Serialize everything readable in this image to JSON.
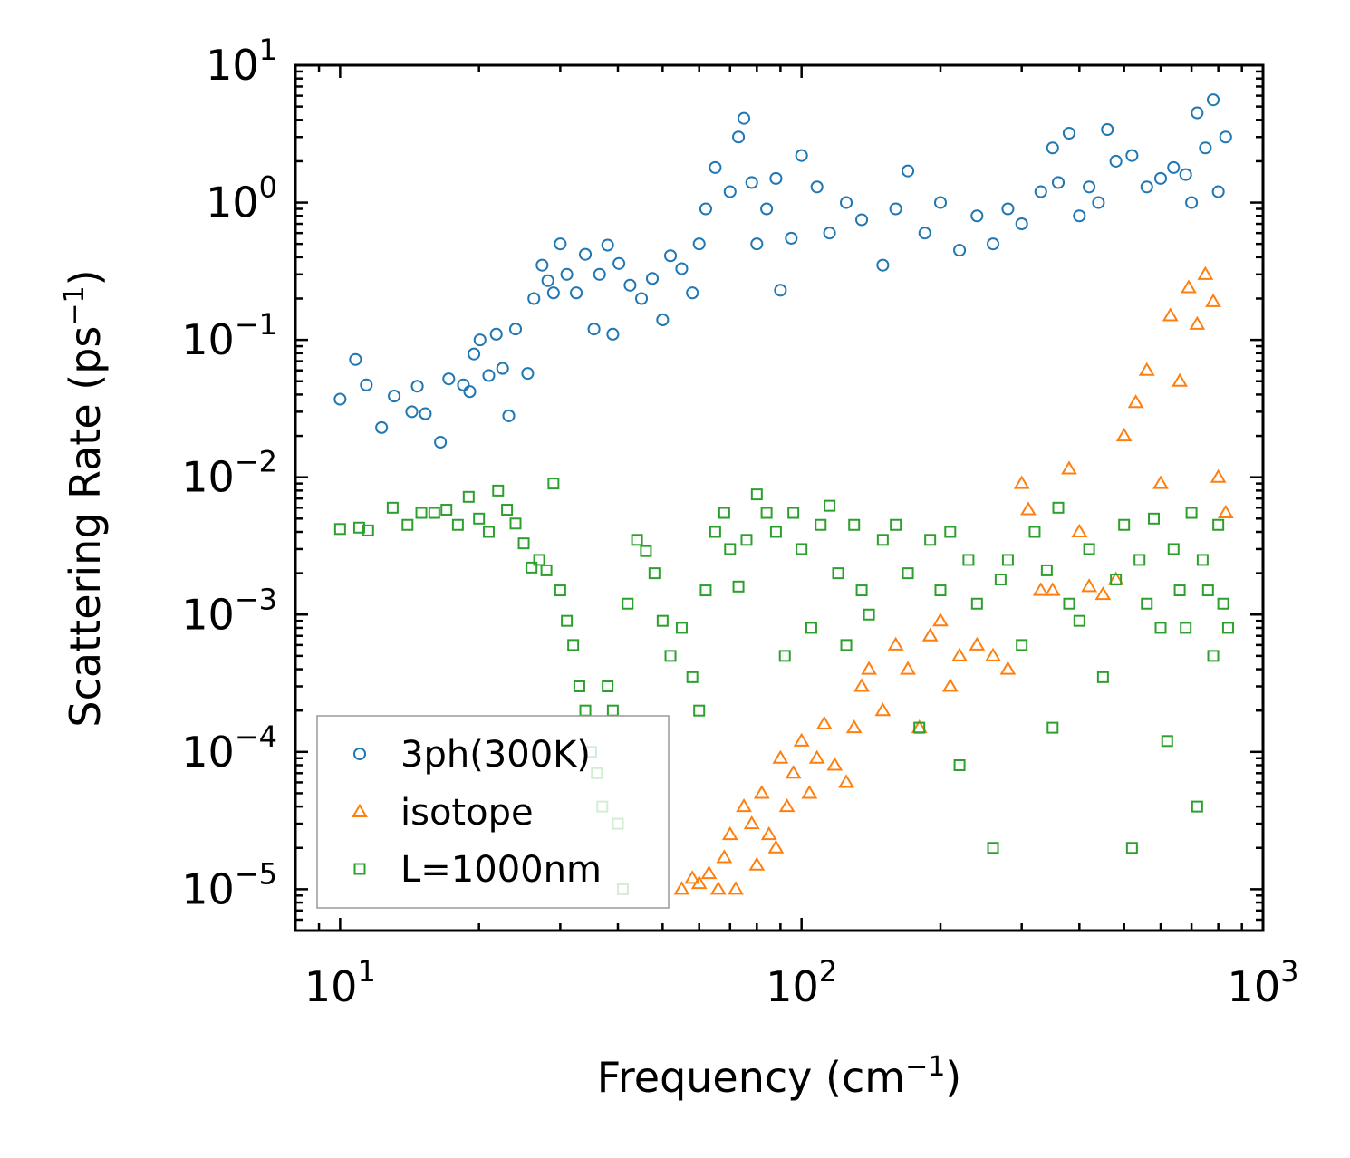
{
  "chart_data": {
    "type": "scatter",
    "title": "",
    "xlabel": "Frequency (cm",
    "xlabel_sup": "−1",
    "xlabel_close": ")",
    "ylabel": "Scattering Rate (ps",
    "ylabel_sup": "−1",
    "ylabel_close": ")",
    "xscale": "log",
    "yscale": "log",
    "xlim": [
      8,
      1000
    ],
    "ylim": [
      5e-06,
      10
    ],
    "xticks": [
      {
        "value": 10,
        "base": "10",
        "exp": "1"
      },
      {
        "value": 100,
        "base": "10",
        "exp": "2"
      },
      {
        "value": 1000,
        "base": "10",
        "exp": "3"
      }
    ],
    "yticks": [
      {
        "value": 10,
        "base": "10",
        "exp": "1"
      },
      {
        "value": 1,
        "base": "10",
        "exp": "0"
      },
      {
        "value": 0.1,
        "base": "10",
        "exp": "−1"
      },
      {
        "value": 0.01,
        "base": "10",
        "exp": "−2"
      },
      {
        "value": 0.001,
        "base": "10",
        "exp": "−3"
      },
      {
        "value": 0.0001,
        "base": "10",
        "exp": "−4"
      },
      {
        "value": 1e-05,
        "base": "10",
        "exp": "−5"
      }
    ],
    "legend_position": "lower-left",
    "series": [
      {
        "name": "3ph(300K)",
        "marker": "circle",
        "color": "#1f77b4",
        "points": [
          [
            10,
            0.037
          ],
          [
            10.8,
            0.072
          ],
          [
            11.4,
            0.047
          ],
          [
            12.3,
            0.023
          ],
          [
            13.1,
            0.039
          ],
          [
            14.3,
            0.03
          ],
          [
            14.7,
            0.046
          ],
          [
            15.3,
            0.029
          ],
          [
            16.5,
            0.018
          ],
          [
            17.2,
            0.052
          ],
          [
            18.5,
            0.047
          ],
          [
            19.1,
            0.042
          ],
          [
            19.5,
            0.079
          ],
          [
            20.1,
            0.1
          ],
          [
            21,
            0.055
          ],
          [
            21.8,
            0.11
          ],
          [
            22.5,
            0.062
          ],
          [
            23.2,
            0.028
          ],
          [
            24,
            0.12
          ],
          [
            25.5,
            0.057
          ],
          [
            26.3,
            0.2
          ],
          [
            27.4,
            0.35
          ],
          [
            28.2,
            0.27
          ],
          [
            29,
            0.22
          ],
          [
            30,
            0.5
          ],
          [
            31,
            0.3
          ],
          [
            32.5,
            0.22
          ],
          [
            34,
            0.42
          ],
          [
            35.5,
            0.12
          ],
          [
            36.5,
            0.3
          ],
          [
            38,
            0.49
          ],
          [
            39,
            0.11
          ],
          [
            40.2,
            0.36
          ],
          [
            42.5,
            0.25
          ],
          [
            45,
            0.2
          ],
          [
            47.5,
            0.28
          ],
          [
            50,
            0.14
          ],
          [
            52,
            0.41
          ],
          [
            55,
            0.33
          ],
          [
            58,
            0.22
          ],
          [
            60,
            0.5
          ],
          [
            62,
            0.9
          ],
          [
            65,
            1.8
          ],
          [
            70,
            1.2
          ],
          [
            73,
            3.0
          ],
          [
            75,
            4.1
          ],
          [
            78,
            1.4
          ],
          [
            80,
            0.5
          ],
          [
            84,
            0.9
          ],
          [
            88,
            1.5
          ],
          [
            90,
            0.23
          ],
          [
            95,
            0.55
          ],
          [
            100,
            2.2
          ],
          [
            108,
            1.3
          ],
          [
            115,
            0.6
          ],
          [
            125,
            1.0
          ],
          [
            135,
            0.75
          ],
          [
            150,
            0.35
          ],
          [
            160,
            0.9
          ],
          [
            170,
            1.7
          ],
          [
            185,
            0.6
          ],
          [
            200,
            1.0
          ],
          [
            220,
            0.45
          ],
          [
            240,
            0.8
          ],
          [
            260,
            0.5
          ],
          [
            280,
            0.9
          ],
          [
            300,
            0.7
          ],
          [
            330,
            1.2
          ],
          [
            350,
            2.5
          ],
          [
            360,
            1.4
          ],
          [
            380,
            3.2
          ],
          [
            400,
            0.8
          ],
          [
            420,
            1.3
          ],
          [
            440,
            1.0
          ],
          [
            460,
            3.4
          ],
          [
            480,
            2.0
          ],
          [
            520,
            2.2
          ],
          [
            560,
            1.3
          ],
          [
            600,
            1.5
          ],
          [
            640,
            1.8
          ],
          [
            680,
            1.6
          ],
          [
            700,
            1.0
          ],
          [
            720,
            4.5
          ],
          [
            750,
            2.5
          ],
          [
            780,
            5.6
          ],
          [
            800,
            1.2
          ],
          [
            830,
            3.0
          ]
        ]
      },
      {
        "name": "isotope",
        "marker": "triangle",
        "color": "#ff7f0e",
        "points": [
          [
            55,
            1e-05
          ],
          [
            58,
            1.2e-05
          ],
          [
            60,
            1.1e-05
          ],
          [
            63,
            1.3e-05
          ],
          [
            66,
            1e-05
          ],
          [
            68,
            1.7e-05
          ],
          [
            70,
            2.5e-05
          ],
          [
            72,
            1e-05
          ],
          [
            75,
            4e-05
          ],
          [
            78,
            3e-05
          ],
          [
            80,
            1.5e-05
          ],
          [
            82,
            5e-05
          ],
          [
            85,
            2.5e-05
          ],
          [
            88,
            2e-05
          ],
          [
            90,
            9e-05
          ],
          [
            93,
            4e-05
          ],
          [
            96,
            7e-05
          ],
          [
            100,
            0.00012
          ],
          [
            104,
            5e-05
          ],
          [
            108,
            9e-05
          ],
          [
            112,
            0.00016
          ],
          [
            118,
            8e-05
          ],
          [
            125,
            6e-05
          ],
          [
            130,
            0.00015
          ],
          [
            135,
            0.0003
          ],
          [
            140,
            0.0004
          ],
          [
            150,
            0.0002
          ],
          [
            160,
            0.0006
          ],
          [
            170,
            0.0004
          ],
          [
            180,
            0.00015
          ],
          [
            190,
            0.0007
          ],
          [
            200,
            0.0009
          ],
          [
            210,
            0.0003
          ],
          [
            220,
            0.0005
          ],
          [
            240,
            0.0006
          ],
          [
            260,
            0.0005
          ],
          [
            280,
            0.0004
          ],
          [
            300,
            0.009
          ],
          [
            310,
            0.0058
          ],
          [
            330,
            0.0015
          ],
          [
            350,
            0.0015
          ],
          [
            380,
            0.0115
          ],
          [
            400,
            0.004
          ],
          [
            420,
            0.0016
          ],
          [
            450,
            0.0014
          ],
          [
            480,
            0.0018
          ],
          [
            500,
            0.02
          ],
          [
            530,
            0.035
          ],
          [
            560,
            0.06
          ],
          [
            600,
            0.009
          ],
          [
            630,
            0.15
          ],
          [
            660,
            0.05
          ],
          [
            690,
            0.24
          ],
          [
            720,
            0.13
          ],
          [
            750,
            0.3
          ],
          [
            780,
            0.19
          ],
          [
            800,
            0.01
          ],
          [
            830,
            0.0055
          ]
        ]
      },
      {
        "name": "L=1000nm",
        "marker": "square",
        "color": "#2ca02c",
        "points": [
          [
            10,
            0.0042
          ],
          [
            11,
            0.0043
          ],
          [
            11.5,
            0.0041
          ],
          [
            13,
            0.006
          ],
          [
            14,
            0.0045
          ],
          [
            15,
            0.0055
          ],
          [
            16,
            0.0055
          ],
          [
            17,
            0.0058
          ],
          [
            18,
            0.0045
          ],
          [
            19,
            0.0072
          ],
          [
            20,
            0.005
          ],
          [
            21,
            0.004
          ],
          [
            22,
            0.008
          ],
          [
            23,
            0.0058
          ],
          [
            24,
            0.0046
          ],
          [
            25,
            0.0033
          ],
          [
            26,
            0.0022
          ],
          [
            27,
            0.0025
          ],
          [
            28,
            0.0021
          ],
          [
            29,
            0.009
          ],
          [
            30,
            0.0015
          ],
          [
            31,
            0.0009
          ],
          [
            32,
            0.0006
          ],
          [
            33,
            0.0003
          ],
          [
            34,
            0.0002
          ],
          [
            35,
            0.0001
          ],
          [
            36,
            7e-05
          ],
          [
            37,
            4e-05
          ],
          [
            38,
            0.0003
          ],
          [
            39,
            0.0002
          ],
          [
            40,
            3e-05
          ],
          [
            41,
            1e-05
          ],
          [
            42,
            0.0012
          ],
          [
            44,
            0.0035
          ],
          [
            46,
            0.0029
          ],
          [
            48,
            0.002
          ],
          [
            50,
            0.0009
          ],
          [
            52,
            0.0005
          ],
          [
            55,
            0.0008
          ],
          [
            58,
            0.00035
          ],
          [
            60,
            0.0002
          ],
          [
            62,
            0.0015
          ],
          [
            65,
            0.004
          ],
          [
            68,
            0.0055
          ],
          [
            70,
            0.003
          ],
          [
            73,
            0.0016
          ],
          [
            76,
            0.0035
          ],
          [
            80,
            0.0075
          ],
          [
            84,
            0.0055
          ],
          [
            88,
            0.004
          ],
          [
            92,
            0.0005
          ],
          [
            96,
            0.0055
          ],
          [
            100,
            0.003
          ],
          [
            105,
            0.0008
          ],
          [
            110,
            0.0045
          ],
          [
            115,
            0.0062
          ],
          [
            120,
            0.002
          ],
          [
            125,
            0.0006
          ],
          [
            130,
            0.0045
          ],
          [
            135,
            0.0015
          ],
          [
            140,
            0.001
          ],
          [
            150,
            0.0035
          ],
          [
            160,
            0.0045
          ],
          [
            170,
            0.002
          ],
          [
            180,
            0.00015
          ],
          [
            190,
            0.0035
          ],
          [
            200,
            0.0015
          ],
          [
            210,
            0.004
          ],
          [
            220,
            8e-05
          ],
          [
            230,
            0.0025
          ],
          [
            240,
            0.0012
          ],
          [
            260,
            2e-05
          ],
          [
            270,
            0.0018
          ],
          [
            280,
            0.0025
          ],
          [
            300,
            0.0006
          ],
          [
            320,
            0.004
          ],
          [
            340,
            0.0021
          ],
          [
            350,
            0.00015
          ],
          [
            360,
            0.006
          ],
          [
            380,
            0.0012
          ],
          [
            400,
            0.0009
          ],
          [
            420,
            0.003
          ],
          [
            450,
            0.00035
          ],
          [
            480,
            0.0018
          ],
          [
            500,
            0.0045
          ],
          [
            520,
            2e-05
          ],
          [
            540,
            0.0025
          ],
          [
            560,
            0.0012
          ],
          [
            580,
            0.005
          ],
          [
            600,
            0.0008
          ],
          [
            620,
            0.00012
          ],
          [
            640,
            0.003
          ],
          [
            660,
            0.0015
          ],
          [
            680,
            0.0008
          ],
          [
            700,
            0.0055
          ],
          [
            720,
            4e-05
          ],
          [
            740,
            0.0025
          ],
          [
            760,
            0.0015
          ],
          [
            780,
            0.0005
          ],
          [
            800,
            0.0045
          ],
          [
            820,
            0.0012
          ],
          [
            840,
            0.0008
          ]
        ]
      }
    ]
  }
}
